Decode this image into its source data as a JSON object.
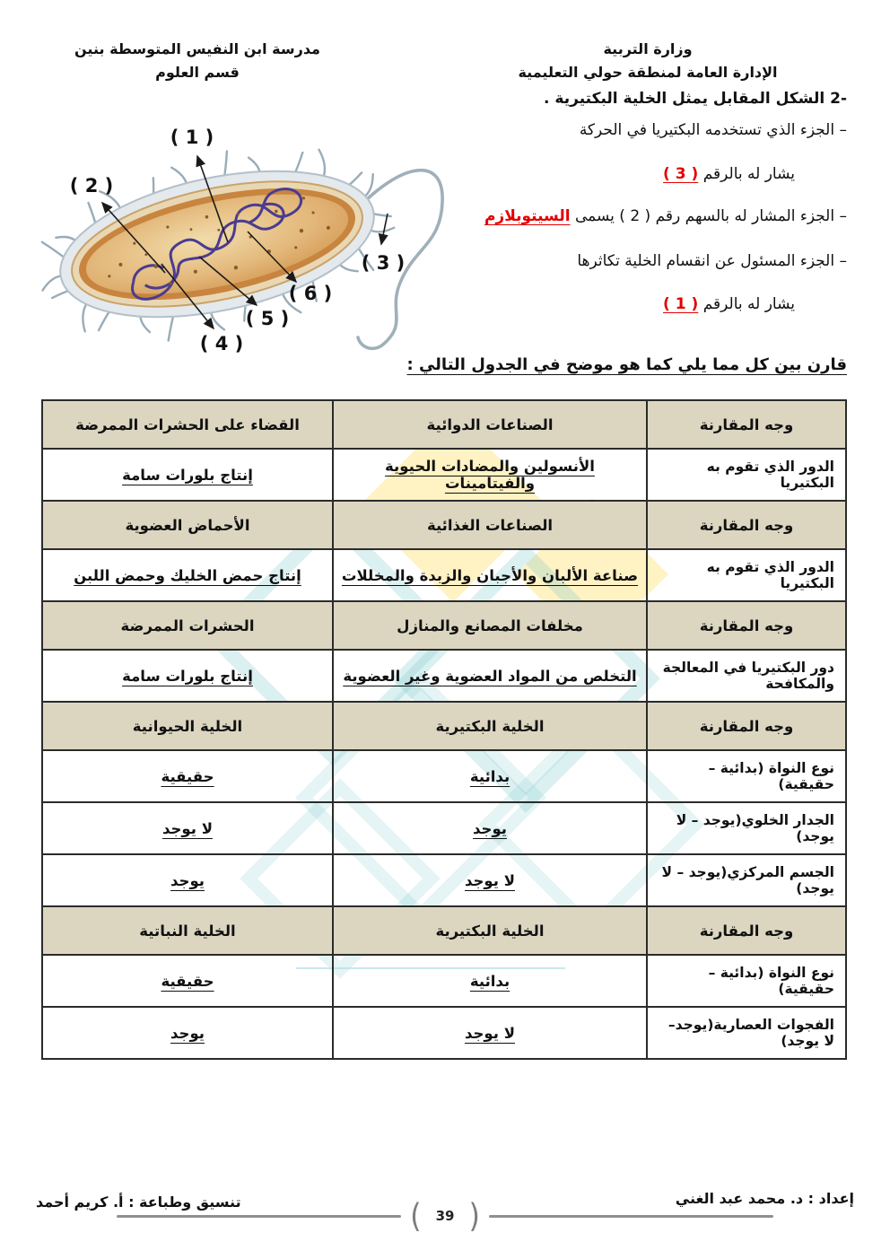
{
  "header": {
    "school_line1": "مدرسة ابن النفيس المتوسطة بنين",
    "school_line2": "قسم العلوم",
    "ministry_line1": "وزارة التربية",
    "ministry_line2": "الإدارة العامة لمنطقة حولي التعليمية"
  },
  "question": {
    "number": "2-",
    "intro": "الشكل المقابل يمثل الخلية البكتيرية .",
    "bullets": [
      {
        "text": "– الجزء الذي تستخدمه البكتيريا في الحركة",
        "answer_prefix": "يشار له بالرقم",
        "answer": "( 3 )"
      },
      {
        "text": "– الجزء المشار له بالسهم رقم ( 2 ) يسمى",
        "answer": "السيتوبلازم"
      },
      {
        "text": "– الجزء المسئول عن انقسام الخلية تكاثرها",
        "answer_prefix": "يشار له بالرقم",
        "answer": "( 1 )"
      }
    ]
  },
  "diagram": {
    "description": "bacterial-cell-diagram",
    "labels": [
      "( 1 )",
      "( 2 )",
      "( 3 )",
      "( 4 )",
      "( 5 )",
      "( 6 )"
    ]
  },
  "compare_heading": "قارن بين كل مما يلي كما هو موضح في الجدول التالي :",
  "table": {
    "rows": [
      {
        "type": "header",
        "cells": [
          "وجه المقارنة",
          "الصناعات الدوائية",
          "القضاء على الحشرات الممرضة"
        ]
      },
      {
        "type": "answer",
        "cells": [
          "الدور الذي تقوم به البكتيريا",
          "الأنسولين والمضادات الحيوية والفيتامينات",
          "إنتاج بلورات سامة"
        ]
      },
      {
        "type": "header",
        "cells": [
          "وجه المقارنة",
          "الصناعات الغذائية",
          "الأحماض العضوية"
        ]
      },
      {
        "type": "answer",
        "cells": [
          "الدور الذي تقوم به البكتيريا",
          "صناعة الألبان والأجبان والزبدة والمخللات",
          "إنتاج حمض الخليك وحمض اللبن"
        ]
      },
      {
        "type": "header",
        "cells": [
          "وجه المقارنة",
          "مخلفات المصانع والمنازل",
          "الحشرات الممرضة"
        ]
      },
      {
        "type": "answer",
        "cells": [
          "دور البكتيريا في المعالجة والمكافحة",
          "التخلص من المواد العضوية وغير العضوية",
          "إنتاج بلورات سامة"
        ]
      },
      {
        "type": "header",
        "cells": [
          "وجه المقارنة",
          "الخلية البكتيرية",
          "الخلية الحيوانية"
        ]
      },
      {
        "type": "answer",
        "cells": [
          "نوع النواة (بدائية – حقيقية)",
          "بدائية",
          "حقيقية"
        ]
      },
      {
        "type": "answer",
        "cells": [
          "الجدار الخلوي(يوجد – لا يوجد)",
          "يوجد",
          "لا يوجد"
        ]
      },
      {
        "type": "answer",
        "cells": [
          "الجسم المركزي(يوجد – لا يوجد)",
          "لا يوجد",
          "يوجد"
        ]
      },
      {
        "type": "header",
        "cells": [
          "وجه المقارنة",
          "الخلية البكتيرية",
          "الخلية النباتية"
        ]
      },
      {
        "type": "answer",
        "cells": [
          "نوع النواة (بدائية – حقيقية)",
          "بدائية",
          "حقيقية"
        ]
      },
      {
        "type": "answer",
        "cells": [
          "الفجوات العصارية(يوجد– لا يوجد)",
          "لا يوجد",
          "يوجد"
        ]
      }
    ]
  },
  "footer": {
    "prepared_by": "إعداد : د. محمد عبد الغني",
    "typeset_by": "تنسيق وطباعة : أ. كريم أحمد",
    "page_number": "39"
  },
  "colors": {
    "answer_red": "#e30000",
    "table_header_bg": "#dcd6c1",
    "watermark_teal": "#7fc9ce",
    "watermark_yellow": "#ffe27a"
  }
}
